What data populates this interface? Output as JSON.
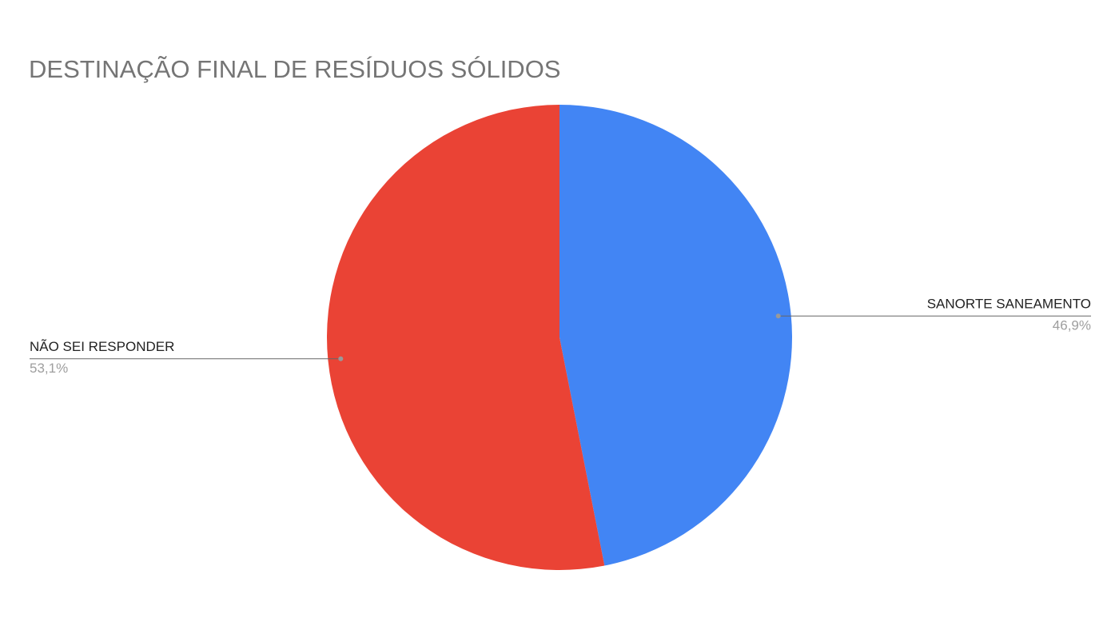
{
  "chart_data": {
    "type": "pie",
    "title": "DESTINAÇÃO FINAL DE RESÍDUOS SÓLIDOS",
    "categories": [
      "SANORTE SANEAMENTO",
      "NÃO SEI RESPONDER"
    ],
    "values": [
      46.9,
      53.1
    ],
    "value_labels": [
      "46,9%",
      "53,1%"
    ],
    "colors": [
      "#4285f4",
      "#ea4335"
    ]
  }
}
